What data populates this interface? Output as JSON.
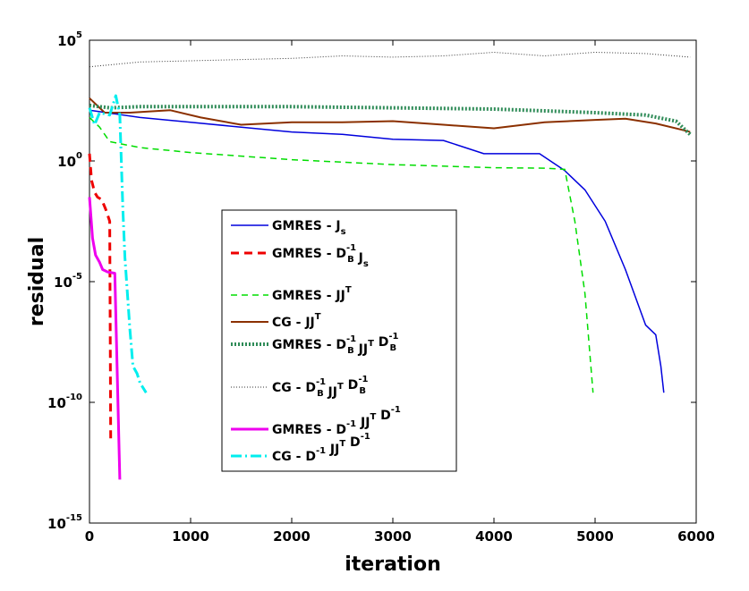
{
  "chart_data": {
    "type": "line",
    "title": "",
    "xlabel": "iteration",
    "ylabel": "residual",
    "xlim": [
      0,
      6000
    ],
    "ylim_log10": [
      -15,
      5
    ],
    "yscale": "log",
    "grid": false,
    "legend_position": "center-left",
    "x_ticks": [
      "0",
      "1000",
      "2000",
      "3000",
      "4000",
      "5000",
      "6000"
    ],
    "y_ticks": [
      {
        "base": "10",
        "exp": "5"
      },
      {
        "base": "10",
        "exp": "0"
      },
      {
        "base": "10",
        "exp": "-5"
      },
      {
        "base": "10",
        "exp": "-10"
      },
      {
        "base": "10",
        "exp": "-15"
      }
    ],
    "series": [
      {
        "name": "GMRES - J_s",
        "legend": [
          {
            "t": "GMRES  -  J"
          },
          {
            "t": "s",
            "sub": true
          }
        ],
        "color": "#0000dd",
        "dash": "",
        "width": 1.5,
        "x": [
          0,
          500,
          1000,
          1500,
          2000,
          2500,
          3000,
          3500,
          3900,
          4450,
          4700,
          4900,
          5100,
          5300,
          5500,
          5600,
          5650,
          5680
        ],
        "y": [
          2.1,
          1.8,
          1.6,
          1.4,
          1.2,
          1.1,
          0.9,
          0.85,
          0.3,
          0.3,
          -0.4,
          -1.2,
          -2.5,
          -4.5,
          -6.8,
          -7.2,
          -8.5,
          -9.6
        ]
      },
      {
        "name": "GMRES - D_B^-1 J_s",
        "legend": [
          {
            "t": "GMRES  -  D"
          },
          {
            "t": "B",
            "sub": true,
            "sup": "-1"
          },
          {
            "t": " J"
          },
          {
            "t": "s",
            "sub": true
          }
        ],
        "color": "#ee0000",
        "dash": "9,6",
        "width": 3,
        "x": [
          0,
          20,
          50,
          80,
          120,
          160,
          200,
          210
        ],
        "y": [
          0.3,
          -0.8,
          -1.3,
          -1.5,
          -1.6,
          -2.0,
          -2.5,
          -11.5
        ]
      },
      {
        "name": "GMRES - JJ^T",
        "legend": [
          {
            "t": "GMRES  -  JJ"
          },
          {
            "t": "T",
            "sup": true
          }
        ],
        "color": "#00dd00",
        "dash": "7,5",
        "width": 1.5,
        "x": [
          0,
          100,
          200,
          500,
          1000,
          2000,
          3000,
          4000,
          4500,
          4700,
          4800,
          4900,
          4980
        ],
        "y": [
          1.8,
          1.4,
          0.8,
          0.55,
          0.35,
          0.05,
          -0.15,
          -0.28,
          -0.3,
          -0.35,
          -2.5,
          -5.5,
          -9.6
        ]
      },
      {
        "name": "CG - JJ^T",
        "legend": [
          {
            "t": "CG  -  JJ"
          },
          {
            "t": "T",
            "sup": true
          }
        ],
        "color": "#8b3000",
        "dash": "",
        "width": 2,
        "x": [
          0,
          150,
          400,
          800,
          1100,
          1500,
          2000,
          2500,
          3000,
          3500,
          4000,
          4500,
          5000,
          5300,
          5600,
          5900,
          5940
        ],
        "y": [
          2.6,
          2.0,
          2.0,
          2.1,
          1.8,
          1.5,
          1.6,
          1.6,
          1.65,
          1.5,
          1.35,
          1.6,
          1.7,
          1.75,
          1.55,
          1.25,
          1.2
        ]
      },
      {
        "name": "GMRES - D_B^-1 JJ^T D_B^-1",
        "legend": [
          {
            "t": "GMRES  -  D"
          },
          {
            "t": "B",
            "sub": true,
            "sup": "-1"
          },
          {
            "t": " JJ"
          },
          {
            "t": "T",
            "sup": true
          },
          {
            "t": " D"
          },
          {
            "t": "B",
            "sub": true,
            "sup": "-1"
          }
        ],
        "color": "#2e8b57",
        "dash": "2,2",
        "width": 4,
        "x": [
          0,
          200,
          500,
          1000,
          2000,
          3000,
          4000,
          5000,
          5500,
          5800,
          5940
        ],
        "y": [
          2.3,
          2.2,
          2.25,
          2.25,
          2.25,
          2.2,
          2.15,
          2.0,
          1.9,
          1.65,
          1.1
        ]
      },
      {
        "name": "CG - D_B^-1 JJ^T D_B^-1",
        "legend": [
          {
            "t": "CG  -  D"
          },
          {
            "t": "B",
            "sub": true,
            "sup": "-1"
          },
          {
            "t": " JJ"
          },
          {
            "t": "T",
            "sup": true
          },
          {
            "t": " D"
          },
          {
            "t": "B",
            "sub": true,
            "sup": "-1"
          }
        ],
        "color": "#333333",
        "dash": "1,2",
        "width": 1,
        "x": [
          0,
          500,
          1000,
          1500,
          2000,
          2500,
          3000,
          3500,
          4000,
          4500,
          5000,
          5500,
          5940
        ],
        "y": [
          3.9,
          4.1,
          4.15,
          4.2,
          4.25,
          4.35,
          4.3,
          4.35,
          4.5,
          4.35,
          4.5,
          4.45,
          4.3
        ]
      },
      {
        "name": "GMRES - D^-1 JJ^T D^-1",
        "legend": [
          {
            "t": "GMRES  -  D"
          },
          {
            "t": "-1",
            "sup": true
          },
          {
            "t": " JJ"
          },
          {
            "t": "T",
            "sup": true
          },
          {
            "t": " D"
          },
          {
            "t": "-1",
            "sup": true
          }
        ],
        "color": "#ee00ee",
        "dash": "",
        "width": 3,
        "x": [
          0,
          30,
          60,
          100,
          130,
          180,
          250,
          300
        ],
        "y": [
          -1.5,
          -3.2,
          -3.9,
          -4.2,
          -4.5,
          -4.6,
          -4.65,
          -13.2
        ]
      },
      {
        "name": "CG - D^-1 JJ^T D^-1",
        "legend": [
          {
            "t": "CG  -  D"
          },
          {
            "t": "-1",
            "sup": true
          },
          {
            "t": " JJ"
          },
          {
            "t": "T",
            "sup": true
          },
          {
            "t": " D"
          },
          {
            "t": "-1",
            "sup": true
          }
        ],
        "color": "#00eeee",
        "dash": "12,4,2,4",
        "width": 3,
        "x": [
          0,
          50,
          100,
          200,
          260,
          300,
          330,
          350,
          400,
          430,
          470,
          500,
          560
        ],
        "y": [
          2.2,
          1.5,
          2.0,
          1.9,
          2.7,
          1.9,
          -2.0,
          -4.0,
          -7.0,
          -8.5,
          -8.8,
          -9.2,
          -9.6
        ]
      }
    ]
  }
}
